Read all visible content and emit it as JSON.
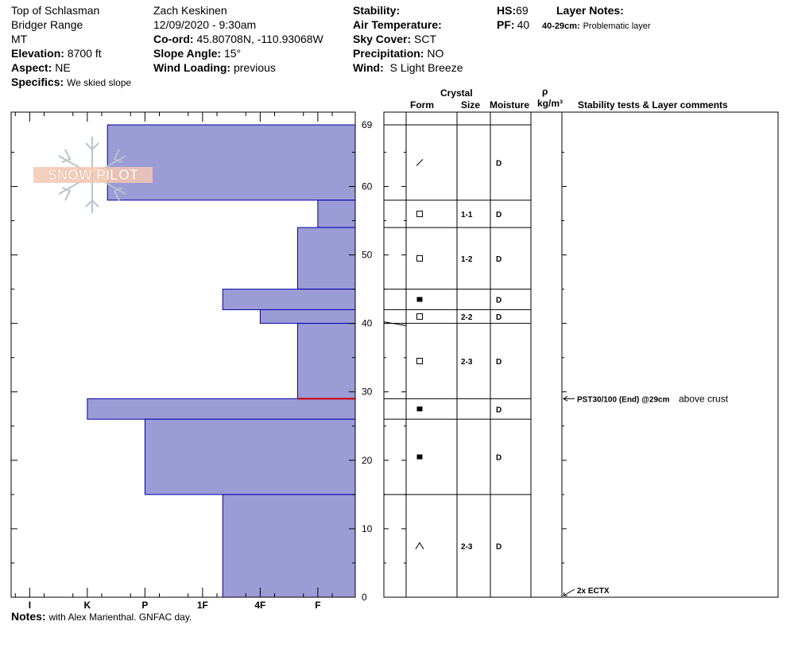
{
  "header": {
    "location": "Top of Schlasman",
    "range": "Bridger Range",
    "state": "MT",
    "elevation_label": "Elevation:",
    "elevation_value": "8700 ft",
    "aspect_label": "Aspect:",
    "aspect_value": "NE",
    "specifics_label": "Specifics:",
    "specifics_value": "We skied slope",
    "observer": "Zach Keskinen",
    "datetime": "12/09/2020 - 9:30am",
    "coord_label": "Co-ord:",
    "coord_value": "45.80708N, -110.93068W",
    "slope_label": "Slope Angle:",
    "slope_value": "15°",
    "wind_loading_label": "Wind Loading:",
    "wind_loading_value": "previous",
    "stability_label": "Stability:",
    "stability_value": "",
    "air_temp_label": "Air Temperature:",
    "air_temp_value": "",
    "sky_label": "Sky Cover:",
    "sky_value": "SCT",
    "precip_label": "Precipitation:",
    "precip_value": "NO",
    "wind_label": "Wind:",
    "wind_value": "S Light Breeze",
    "hs_label": "HS:",
    "hs_value": "69",
    "pf_label": "PF:",
    "pf_value": "40",
    "layer_notes_label": "Layer Notes:",
    "layer_note_range": "40-29cm:",
    "layer_note_text": "Problematic layer"
  },
  "logo_text": "SNOW PILOT",
  "notes_label": "Notes:",
  "notes_value": "with Alex Marienthal. GNFAC day.",
  "columns": {
    "crystal": "Crystal",
    "form": "Form",
    "size": "Size",
    "moisture": "Moisture",
    "rho": "ρ",
    "density_unit": "kg/m³",
    "comments": "Stability tests & Layer comments"
  },
  "chart_data": {
    "type": "bar",
    "ylabel": "",
    "ylim": [
      0,
      69
    ],
    "yticks": [
      0,
      10,
      20,
      30,
      40,
      50,
      60,
      69
    ],
    "hardness_ticks": [
      "I",
      "K",
      "P",
      "1F",
      "4F",
      "F"
    ],
    "colors": {
      "fill": "#9b9bd6",
      "stroke": "#0000aa",
      "critical": "#cc0000"
    },
    "layers": [
      {
        "bottom": 58,
        "top": 69,
        "hardness": 4.3,
        "form": "slash",
        "size": "",
        "moisture": "D"
      },
      {
        "bottom": 54,
        "top": 58,
        "hardness": 0.65,
        "form": "open-square",
        "size": "1-1",
        "moisture": "D"
      },
      {
        "bottom": 45,
        "top": 54,
        "hardness": 1.0,
        "form": "open-square",
        "size": "1-2",
        "moisture": "D"
      },
      {
        "bottom": 42,
        "top": 45,
        "hardness": 2.3,
        "form": "filled-square",
        "size": "",
        "moisture": "D"
      },
      {
        "bottom": 40,
        "top": 42,
        "hardness": 1.65,
        "form": "open-square",
        "size": "2-2",
        "moisture": "D"
      },
      {
        "bottom": 29,
        "top": 40,
        "hardness": 1.0,
        "form": "open-square",
        "size": "2-3",
        "moisture": "D"
      },
      {
        "bottom": 26,
        "top": 29,
        "hardness": 4.65,
        "form": "filled-square",
        "size": "",
        "moisture": "D"
      },
      {
        "bottom": 15,
        "top": 26,
        "hardness": 3.65,
        "form": "filled-square",
        "size": "",
        "moisture": "D"
      },
      {
        "bottom": 0,
        "top": 15,
        "hardness": 2.3,
        "form": "caret",
        "size": "2-3",
        "moisture": "D"
      }
    ],
    "critical_depth": 29,
    "tests": [
      {
        "depth": 29,
        "label": "PST30/100 (End) @29cm",
        "comment": "above crust"
      },
      {
        "depth": 0,
        "label": "2x ECTX",
        "comment": ""
      }
    ]
  }
}
